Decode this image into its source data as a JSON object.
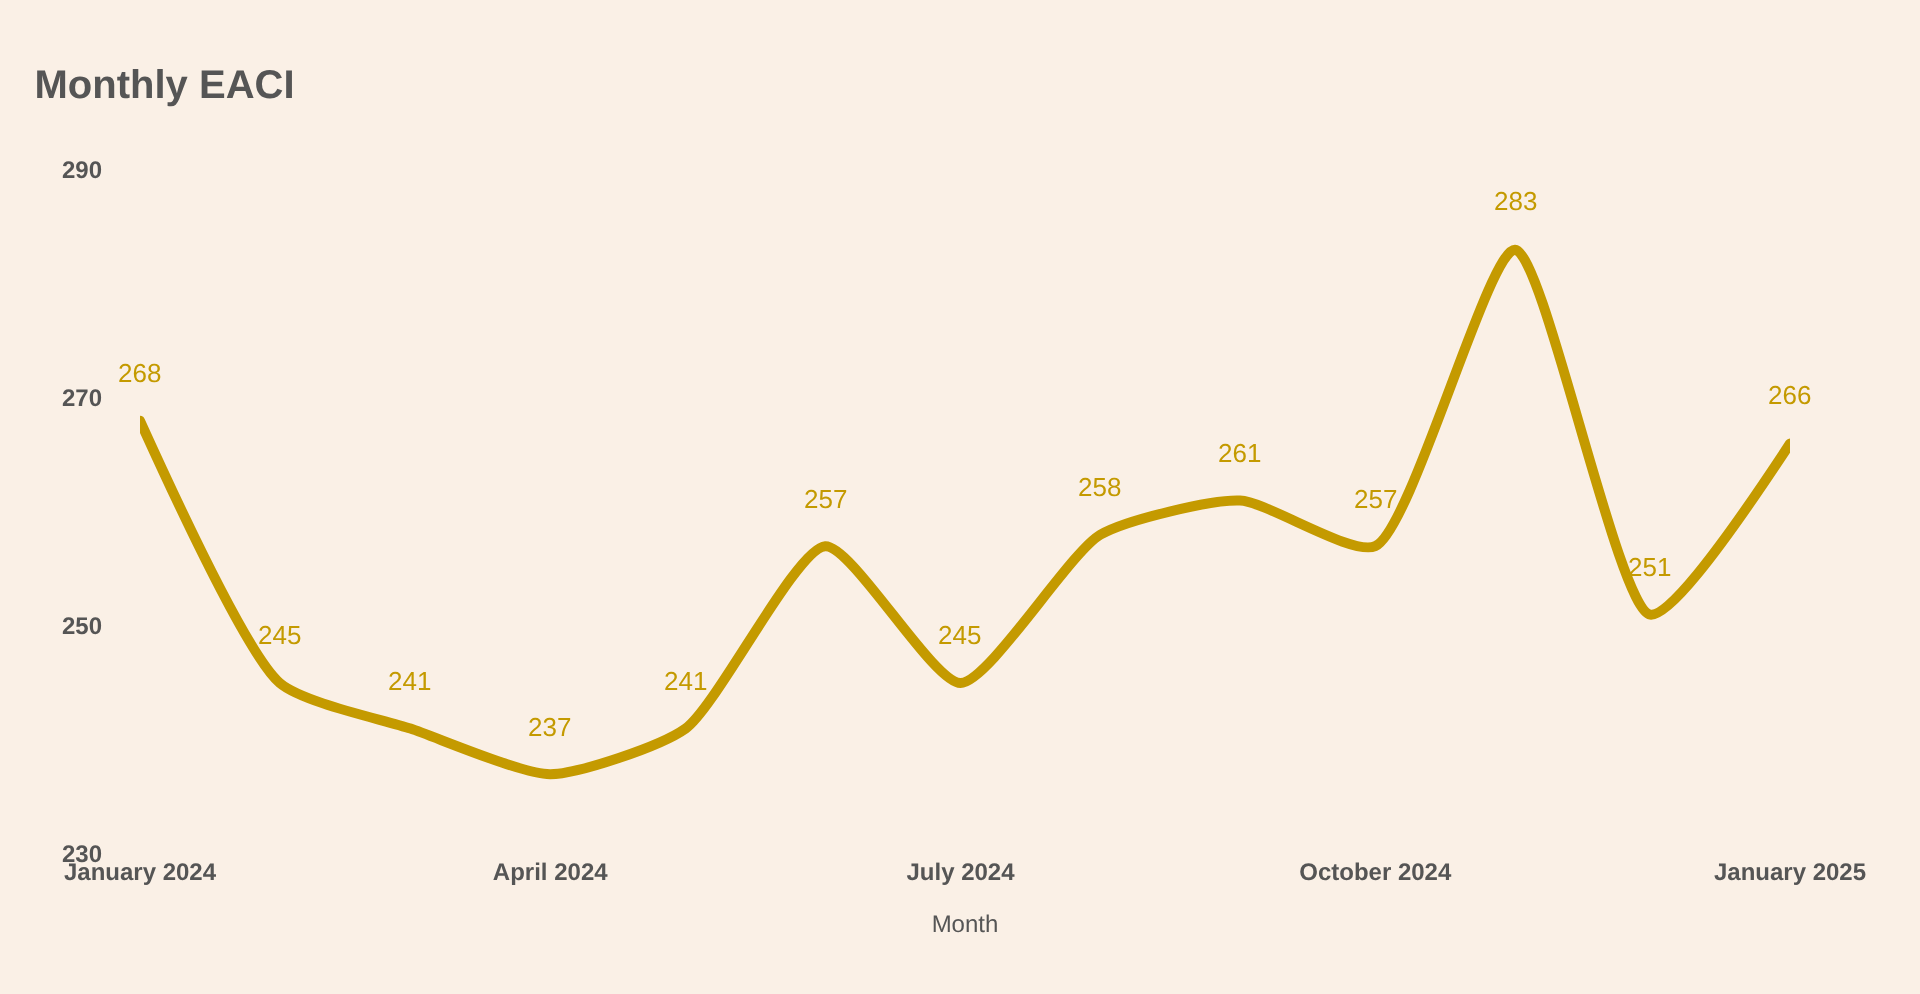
{
  "chart_data": {
    "type": "line",
    "title": "Monthly EACI",
    "xlabel": "Month",
    "x": [
      "2024-01",
      "2024-02",
      "2024-03",
      "2024-04",
      "2024-05",
      "2024-06",
      "2024-07",
      "2024-08",
      "2024-09",
      "2024-10",
      "2024-11",
      "2024-12",
      "2025-01"
    ],
    "series": [
      {
        "color": "#c49a00",
        "values": [
          268,
          245,
          241,
          237,
          241,
          257,
          245,
          258,
          261,
          257,
          283,
          251,
          266
        ]
      }
    ],
    "xlim": [
      "2024-01",
      "2025-01"
    ],
    "xticks": [
      {
        "value": "2024-01",
        "label": "January 2024"
      },
      {
        "value": "2024-04",
        "label": "April 2024"
      },
      {
        "value": "2024-07",
        "label": "July 2024"
      },
      {
        "value": "2024-10",
        "label": "October 2024"
      },
      {
        "value": "2025-01",
        "label": "January 2025"
      }
    ],
    "ylim": [
      230,
      290
    ],
    "yticks": [
      230,
      250,
      270,
      290
    ],
    "data_labels": true,
    "grid": false,
    "marker": "none",
    "line_style": "solid"
  }
}
